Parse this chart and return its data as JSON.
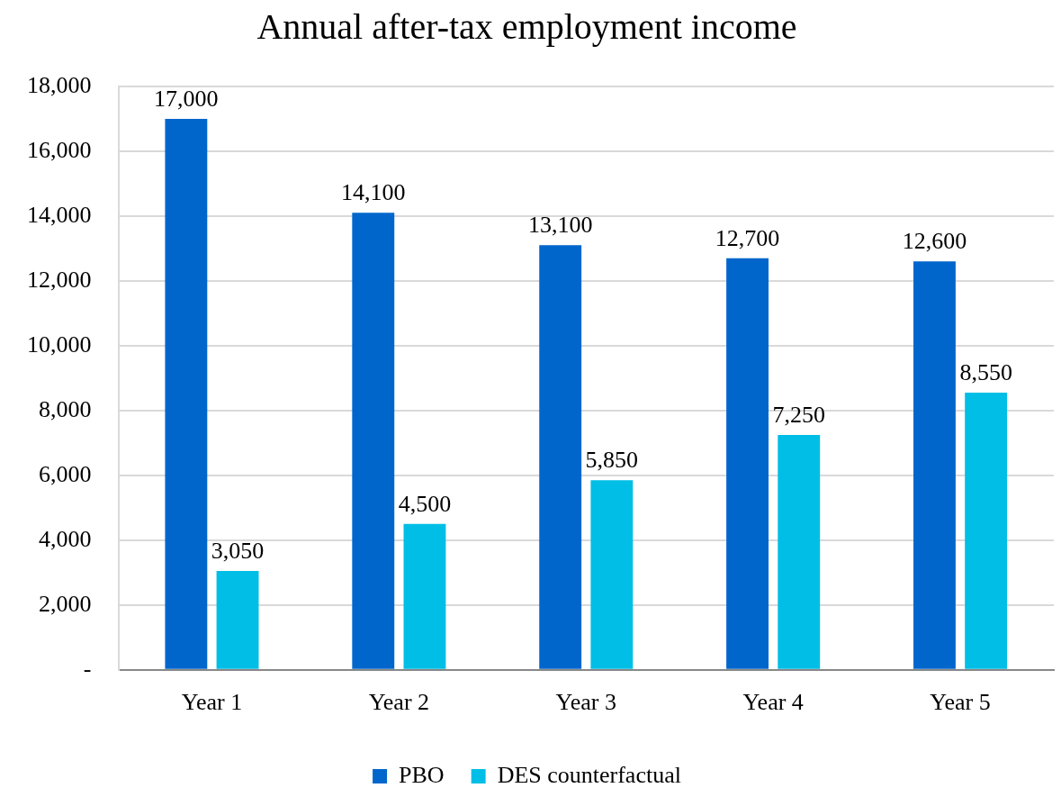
{
  "chart_data": {
    "type": "bar",
    "title": "Annual after-tax employment income",
    "categories": [
      "Year 1",
      "Year 2",
      "Year 3",
      "Year 4",
      "Year 5"
    ],
    "series": [
      {
        "name": "PBO",
        "color": "#0066cc",
        "values": [
          17000,
          14100,
          13100,
          12700,
          12600
        ],
        "value_labels": [
          "17,000",
          "14,100",
          "13,100",
          "12,700",
          "12,600"
        ]
      },
      {
        "name": "DES counterfactual",
        "color": "#00bee6",
        "values": [
          3050,
          4500,
          5850,
          7250,
          8550
        ],
        "value_labels": [
          "3,050",
          "4,500",
          "5,850",
          "7,250",
          "8,550"
        ]
      }
    ],
    "ylim": [
      0,
      18000
    ],
    "yticks": [
      {
        "value": 0,
        "label": "-"
      },
      {
        "value": 2000,
        "label": "2,000"
      },
      {
        "value": 4000,
        "label": "4,000"
      },
      {
        "value": 6000,
        "label": "6,000"
      },
      {
        "value": 8000,
        "label": "8,000"
      },
      {
        "value": 10000,
        "label": "10,000"
      },
      {
        "value": 12000,
        "label": "12,000"
      },
      {
        "value": 14000,
        "label": "14,000"
      },
      {
        "value": 16000,
        "label": "16,000"
      },
      {
        "value": 18000,
        "label": "18,000"
      }
    ],
    "grid": "y",
    "legend": "bottom"
  }
}
